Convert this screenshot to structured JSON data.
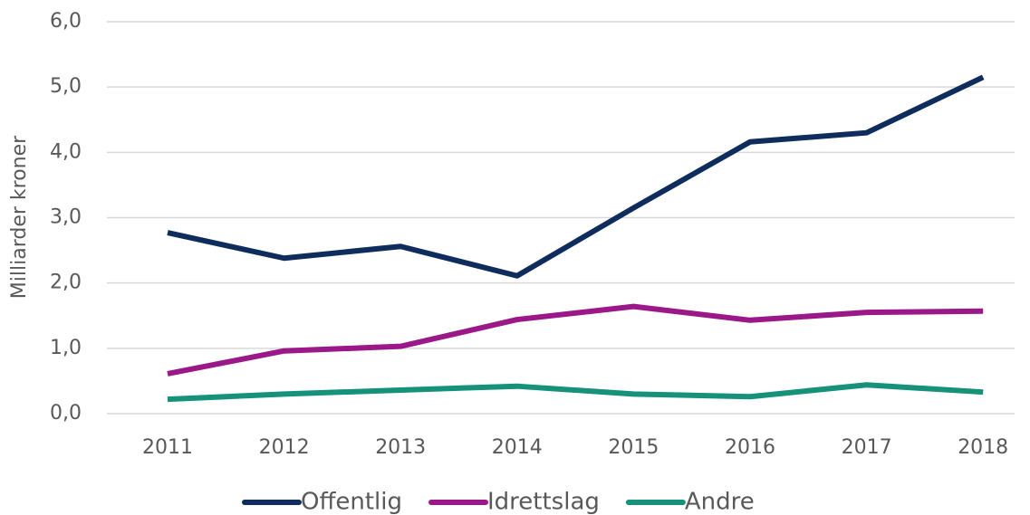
{
  "chart_data": {
    "type": "line",
    "y_label": "Milliarder kroner",
    "categories": [
      "2011",
      "2012",
      "2013",
      "2014",
      "2015",
      "2016",
      "2017",
      "2018"
    ],
    "series": [
      {
        "name": "Offentlig",
        "color": "#0e2d5c",
        "values": [
          2.77,
          2.38,
          2.56,
          2.11,
          3.15,
          4.16,
          4.3,
          5.15
        ]
      },
      {
        "name": "Idrettslag",
        "color": "#9b1889",
        "values": [
          0.61,
          0.96,
          1.03,
          1.44,
          1.64,
          1.43,
          1.55,
          1.57
        ]
      },
      {
        "name": "Andre",
        "color": "#16917a",
        "values": [
          0.22,
          0.3,
          0.36,
          0.42,
          0.3,
          0.26,
          0.44,
          0.33
        ]
      }
    ],
    "ylim": [
      0,
      6
    ],
    "yticks": [
      {
        "value": 0,
        "label": "0,0"
      },
      {
        "value": 1,
        "label": "1,0"
      },
      {
        "value": 2,
        "label": "2,0"
      },
      {
        "value": 3,
        "label": "3,0"
      },
      {
        "value": 4,
        "label": "4,0"
      },
      {
        "value": 5,
        "label": "5,0"
      },
      {
        "value": 6,
        "label": "6,0"
      }
    ],
    "grid": true,
    "legend": "bottom"
  }
}
